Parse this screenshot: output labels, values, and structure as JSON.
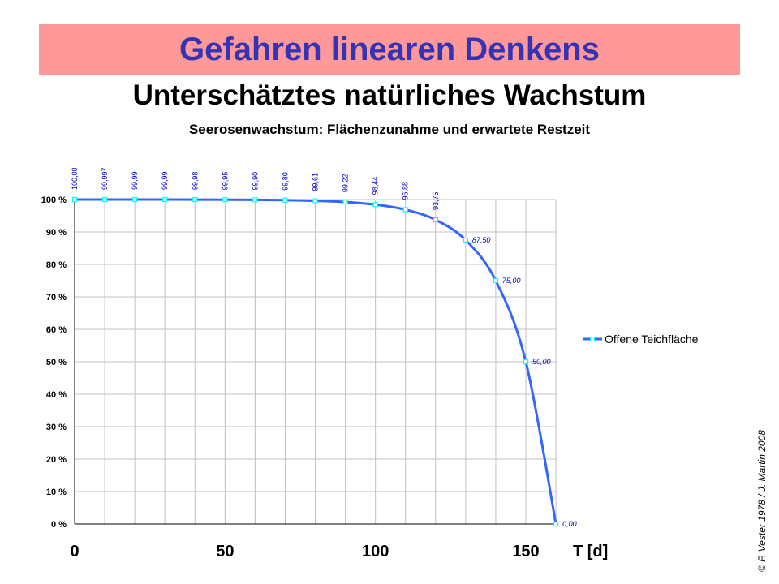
{
  "header": {
    "title": "Gefahren linearen Denkens",
    "subtitle": "Unterschätztes natürliches Wachstum"
  },
  "credit": "© F. Vester 1978 / J. Martin 2008",
  "colors": {
    "banner": "#ff9999",
    "title": "#3333b3",
    "line": "#3366ff",
    "marker": "#00ffff",
    "labels": "#0000cc"
  },
  "chart_data": {
    "type": "line",
    "title": "Seerosenwachstum:  Flächenzunahme und erwartete Restzeit",
    "xlabel": "T [d]",
    "ylabel": "",
    "xlim": [
      0,
      160
    ],
    "ylim": [
      0,
      100
    ],
    "x_ticks": [
      "0",
      "50",
      "100",
      "150"
    ],
    "y_ticks": [
      "0 %",
      "10 %",
      "20 %",
      "30 %",
      "40 %",
      "50 %",
      "60 %",
      "70 %",
      "80 %",
      "90 %",
      "100 %"
    ],
    "grid": true,
    "legend": "right",
    "series": [
      {
        "name": "Offene Teichfläche",
        "x": [
          0,
          10,
          20,
          30,
          40,
          50,
          60,
          70,
          80,
          90,
          100,
          110,
          120,
          130,
          140,
          150,
          160
        ],
        "values": [
          100,
          99.997,
          99.99,
          99.99,
          99.98,
          99.95,
          99.9,
          99.8,
          99.61,
          99.22,
          98.44,
          96.88,
          93.75,
          87.5,
          75.0,
          50.0,
          0.0
        ],
        "labels": [
          "100,00",
          "99,997",
          "99,99",
          "99,99",
          "99,98",
          "99,95",
          "99,90",
          "99,80",
          "99,61",
          "99,22",
          "98,44",
          "96,88",
          "93,75",
          "87,50",
          "75,00",
          "50,00",
          "0,00"
        ]
      }
    ]
  }
}
